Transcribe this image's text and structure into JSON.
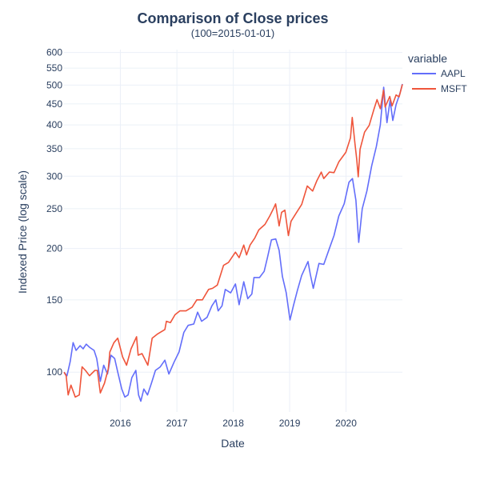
{
  "chart_data": {
    "type": "line",
    "title": "Comparison of Close prices",
    "subtitle": "(100=2015-01-01)",
    "xlabel": "Date",
    "ylabel": "Indexed Price (log scale)",
    "yscale": "log",
    "xlim": [
      "2015-01-01",
      "2020-12-31"
    ],
    "ylim": [
      80,
      610
    ],
    "grid": true,
    "x_ticks": [
      "2016",
      "2017",
      "2018",
      "2019",
      "2020"
    ],
    "y_ticks": [
      100,
      150,
      200,
      250,
      300,
      350,
      400,
      450,
      500,
      550,
      600
    ],
    "legend": {
      "title": "variable",
      "position": "right-top"
    },
    "series": [
      {
        "name": "AAPL",
        "color": "#636efa",
        "points": [
          [
            "2015-01-01",
            100
          ],
          [
            "2015-01-20",
            98
          ],
          [
            "2015-02-10",
            106
          ],
          [
            "2015-03-01",
            118
          ],
          [
            "2015-03-20",
            113
          ],
          [
            "2015-04-15",
            116
          ],
          [
            "2015-05-05",
            114
          ],
          [
            "2015-05-25",
            117
          ],
          [
            "2015-06-15",
            115
          ],
          [
            "2015-07-15",
            113
          ],
          [
            "2015-08-01",
            108
          ],
          [
            "2015-08-24",
            95
          ],
          [
            "2015-09-15",
            104
          ],
          [
            "2015-10-10",
            99
          ],
          [
            "2015-11-01",
            110
          ],
          [
            "2015-11-25",
            108
          ],
          [
            "2015-12-15",
            100
          ],
          [
            "2016-01-10",
            91
          ],
          [
            "2016-01-30",
            87
          ],
          [
            "2016-02-20",
            88
          ],
          [
            "2016-03-15",
            97
          ],
          [
            "2016-04-10",
            101
          ],
          [
            "2016-04-28",
            88
          ],
          [
            "2016-05-12",
            85
          ],
          [
            "2016-06-01",
            91
          ],
          [
            "2016-06-25",
            88
          ],
          [
            "2016-07-20",
            94
          ],
          [
            "2016-08-15",
            101
          ],
          [
            "2016-09-15",
            103
          ],
          [
            "2016-10-15",
            107
          ],
          [
            "2016-11-10",
            99
          ],
          [
            "2016-12-15",
            106
          ],
          [
            "2017-01-15",
            112
          ],
          [
            "2017-02-15",
            125
          ],
          [
            "2017-03-15",
            130
          ],
          [
            "2017-04-20",
            131
          ],
          [
            "2017-05-15",
            140
          ],
          [
            "2017-06-10",
            133
          ],
          [
            "2017-07-15",
            136
          ],
          [
            "2017-08-15",
            145
          ],
          [
            "2017-09-10",
            150
          ],
          [
            "2017-09-25",
            141
          ],
          [
            "2017-10-20",
            145
          ],
          [
            "2017-11-10",
            159
          ],
          [
            "2017-12-15",
            156
          ],
          [
            "2018-01-15",
            164
          ],
          [
            "2018-02-08",
            146
          ],
          [
            "2018-03-10",
            166
          ],
          [
            "2018-04-05",
            151
          ],
          [
            "2018-05-01",
            155
          ],
          [
            "2018-05-15",
            170
          ],
          [
            "2018-06-20",
            170
          ],
          [
            "2018-07-20",
            176
          ],
          [
            "2018-08-10",
            190
          ],
          [
            "2018-09-05",
            210
          ],
          [
            "2018-10-03",
            211
          ],
          [
            "2018-10-25",
            198
          ],
          [
            "2018-11-15",
            171
          ],
          [
            "2018-12-10",
            156
          ],
          [
            "2019-01-03",
            134
          ],
          [
            "2019-01-25",
            145
          ],
          [
            "2019-02-20",
            158
          ],
          [
            "2019-03-20",
            172
          ],
          [
            "2019-04-30",
            186
          ],
          [
            "2019-05-15",
            173
          ],
          [
            "2019-06-03",
            160
          ],
          [
            "2019-07-10",
            184
          ],
          [
            "2019-08-10",
            183
          ],
          [
            "2019-09-15",
            200
          ],
          [
            "2019-10-15",
            215
          ],
          [
            "2019-11-15",
            240
          ],
          [
            "2019-12-20",
            257
          ],
          [
            "2020-01-20",
            290
          ],
          [
            "2020-02-12",
            296
          ],
          [
            "2020-03-05",
            262
          ],
          [
            "2020-03-23",
            207
          ],
          [
            "2020-04-15",
            250
          ],
          [
            "2020-05-15",
            276
          ],
          [
            "2020-06-15",
            318
          ],
          [
            "2020-07-15",
            354
          ],
          [
            "2020-08-10",
            400
          ],
          [
            "2020-09-01",
            494
          ],
          [
            "2020-09-22",
            405
          ],
          [
            "2020-10-12",
            459
          ],
          [
            "2020-10-30",
            410
          ],
          [
            "2020-11-20",
            448
          ],
          [
            "2020-12-15",
            477
          ],
          [
            "2020-12-31",
            503
          ]
        ]
      },
      {
        "name": "MSFT",
        "color": "#ef553b",
        "points": [
          [
            "2015-01-01",
            100
          ],
          [
            "2015-01-15",
            98
          ],
          [
            "2015-01-28",
            88
          ],
          [
            "2015-02-15",
            93
          ],
          [
            "2015-03-15",
            87
          ],
          [
            "2015-04-10",
            88
          ],
          [
            "2015-04-28",
            103
          ],
          [
            "2015-05-20",
            101
          ],
          [
            "2015-06-15",
            98
          ],
          [
            "2015-07-20",
            101
          ],
          [
            "2015-08-05",
            101
          ],
          [
            "2015-08-24",
            89
          ],
          [
            "2015-09-20",
            94
          ],
          [
            "2015-10-15",
            102
          ],
          [
            "2015-10-25",
            112
          ],
          [
            "2015-11-20",
            118
          ],
          [
            "2015-12-15",
            121
          ],
          [
            "2016-01-15",
            109
          ],
          [
            "2016-02-10",
            104
          ],
          [
            "2016-03-10",
            114
          ],
          [
            "2016-04-15",
            122
          ],
          [
            "2016-04-25",
            110
          ],
          [
            "2016-05-20",
            111
          ],
          [
            "2016-06-27",
            104
          ],
          [
            "2016-07-25",
            121
          ],
          [
            "2016-08-30",
            124
          ],
          [
            "2016-10-15",
            127
          ],
          [
            "2016-10-25",
            133
          ],
          [
            "2016-11-20",
            132
          ],
          [
            "2016-12-20",
            138
          ],
          [
            "2017-01-20",
            141
          ],
          [
            "2017-03-01",
            141
          ],
          [
            "2017-04-10",
            144
          ],
          [
            "2017-05-10",
            150
          ],
          [
            "2017-06-15",
            150
          ],
          [
            "2017-07-25",
            159
          ],
          [
            "2017-08-20",
            160
          ],
          [
            "2017-09-20",
            163
          ],
          [
            "2017-10-30",
            182
          ],
          [
            "2017-12-01",
            185
          ],
          [
            "2018-01-15",
            196
          ],
          [
            "2018-02-08",
            190
          ],
          [
            "2018-03-10",
            204
          ],
          [
            "2018-03-28",
            193
          ],
          [
            "2018-04-20",
            204
          ],
          [
            "2018-05-20",
            212
          ],
          [
            "2018-06-15",
            222
          ],
          [
            "2018-07-25",
            229
          ],
          [
            "2018-08-25",
            240
          ],
          [
            "2018-09-20",
            251
          ],
          [
            "2018-10-02",
            257
          ],
          [
            "2018-10-25",
            227
          ],
          [
            "2018-11-10",
            245
          ],
          [
            "2018-12-01",
            248
          ],
          [
            "2018-12-24",
            215
          ],
          [
            "2019-01-10",
            233
          ],
          [
            "2019-02-15",
            245
          ],
          [
            "2019-03-20",
            256
          ],
          [
            "2019-04-25",
            284
          ],
          [
            "2019-05-30",
            276
          ],
          [
            "2019-06-25",
            292
          ],
          [
            "2019-07-25",
            307
          ],
          [
            "2019-08-10",
            296
          ],
          [
            "2019-09-15",
            307
          ],
          [
            "2019-10-15",
            306
          ],
          [
            "2019-11-15",
            325
          ],
          [
            "2019-12-31",
            343
          ],
          [
            "2020-01-30",
            372
          ],
          [
            "2020-02-10",
            417
          ],
          [
            "2020-02-28",
            360
          ],
          [
            "2020-03-10",
            330
          ],
          [
            "2020-03-20",
            299
          ],
          [
            "2020-04-01",
            349
          ],
          [
            "2020-04-30",
            384
          ],
          [
            "2020-05-30",
            399
          ],
          [
            "2020-06-30",
            437
          ],
          [
            "2020-07-20",
            461
          ],
          [
            "2020-08-10",
            438
          ],
          [
            "2020-08-31",
            486
          ],
          [
            "2020-09-10",
            442
          ],
          [
            "2020-10-10",
            469
          ],
          [
            "2020-10-25",
            445
          ],
          [
            "2020-11-20",
            473
          ],
          [
            "2020-12-10",
            468
          ],
          [
            "2020-12-31",
            502
          ]
        ]
      }
    ]
  }
}
